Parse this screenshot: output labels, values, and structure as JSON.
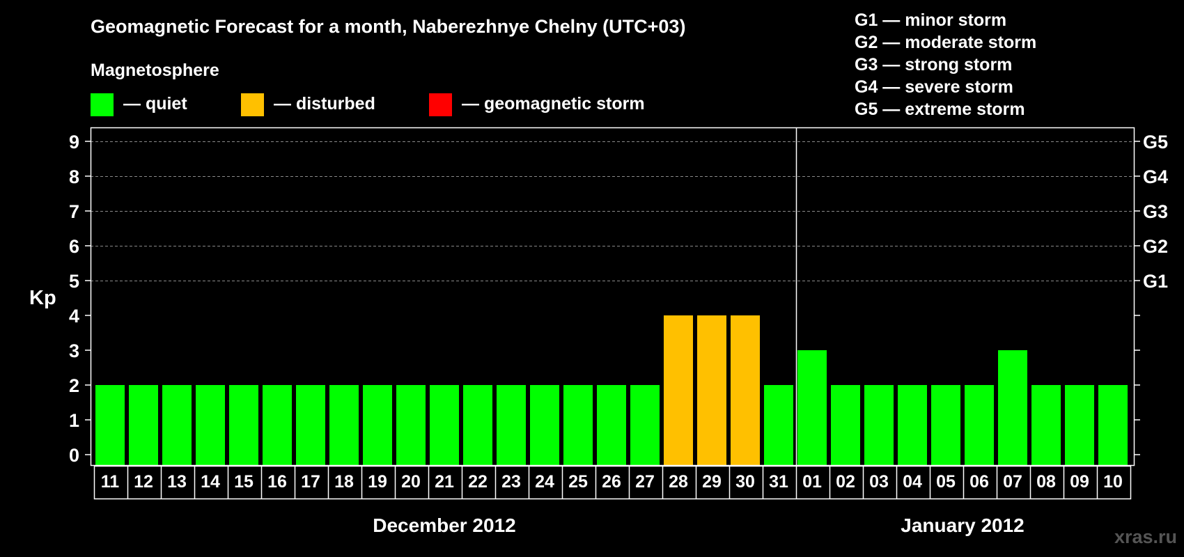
{
  "chart_data": {
    "type": "bar",
    "title": "Geomagnetic Forecast for a month, Naberezhnye Chelny (UTC+03)",
    "legend_title": "Magnetosphere",
    "legend": [
      {
        "key": "quiet",
        "label": "— quiet",
        "color": "#00ff00"
      },
      {
        "key": "disturbed",
        "label": "— disturbed",
        "color": "#ffc000"
      },
      {
        "key": "storm",
        "label": "— geomagnetic storm",
        "color": "#ff0000"
      }
    ],
    "storm_scale": [
      "G1 — minor storm",
      "G2 — moderate storm",
      "G3 — strong storm",
      "G4 — severe storm",
      "G5 — extreme storm"
    ],
    "ylabel": "Kp",
    "ylim": [
      0,
      9
    ],
    "yticks": [
      0,
      1,
      2,
      3,
      4,
      5,
      6,
      7,
      8,
      9
    ],
    "right_ticks": [
      {
        "value": 5,
        "label": "G1"
      },
      {
        "value": 6,
        "label": "G2"
      },
      {
        "value": 7,
        "label": "G3"
      },
      {
        "value": 8,
        "label": "G4"
      },
      {
        "value": 9,
        "label": "G5"
      }
    ],
    "categories": [
      "11",
      "12",
      "13",
      "14",
      "15",
      "16",
      "17",
      "18",
      "19",
      "20",
      "21",
      "22",
      "23",
      "24",
      "25",
      "26",
      "27",
      "28",
      "29",
      "30",
      "31",
      "01",
      "02",
      "03",
      "04",
      "05",
      "06",
      "07",
      "08",
      "09",
      "10"
    ],
    "values": [
      2,
      2,
      2,
      2,
      2,
      2,
      2,
      2,
      2,
      2,
      2,
      2,
      2,
      2,
      2,
      2,
      2,
      4,
      4,
      4,
      2,
      3,
      2,
      2,
      2,
      2,
      2,
      3,
      2,
      2,
      2
    ],
    "levels": [
      "quiet",
      "quiet",
      "quiet",
      "quiet",
      "quiet",
      "quiet",
      "quiet",
      "quiet",
      "quiet",
      "quiet",
      "quiet",
      "quiet",
      "quiet",
      "quiet",
      "quiet",
      "quiet",
      "quiet",
      "disturbed",
      "disturbed",
      "disturbed",
      "quiet",
      "quiet",
      "quiet",
      "quiet",
      "quiet",
      "quiet",
      "quiet",
      "quiet",
      "quiet",
      "quiet",
      "quiet"
    ],
    "month_groups": [
      {
        "label": "December 2012",
        "count": 21
      },
      {
        "label": "January 2012",
        "count": 10
      }
    ],
    "gridlines_at": [
      5,
      6,
      7,
      8,
      9
    ],
    "watermark": "xras.ru"
  }
}
